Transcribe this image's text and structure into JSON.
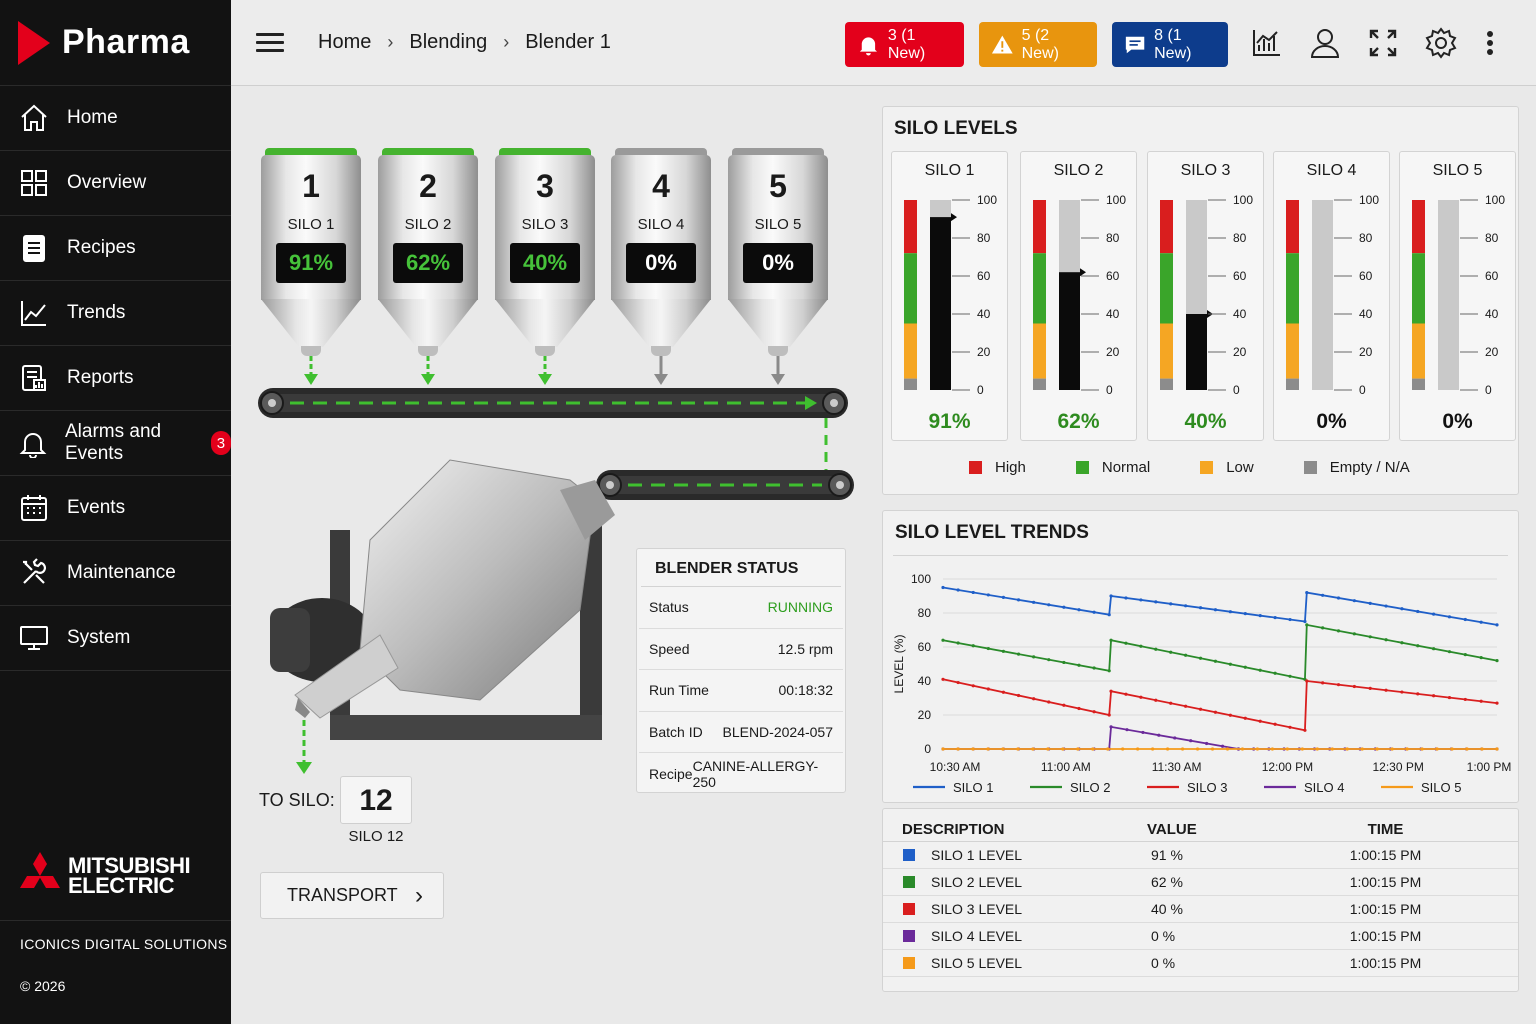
{
  "brand": {
    "name": "Pharma"
  },
  "sidebar": {
    "items": [
      {
        "label": "Home",
        "icon": "home-icon"
      },
      {
        "label": "Overview",
        "icon": "grid-icon"
      },
      {
        "label": "Recipes",
        "icon": "document-icon"
      },
      {
        "label": "Trends",
        "icon": "trend-icon"
      },
      {
        "label": "Reports",
        "icon": "report-icon"
      },
      {
        "label": "Alarms and Events",
        "icon": "bell-icon",
        "badge": "3"
      },
      {
        "label": "Events",
        "icon": "calendar-icon"
      },
      {
        "label": "Maintenance",
        "icon": "tools-icon"
      },
      {
        "label": "System",
        "icon": "monitor-icon"
      }
    ],
    "vendor_line1": "MITSUBISHI",
    "vendor_line2": "ELECTRIC",
    "vendor_sub": "ICONICS DIGITAL SOLUTIONS",
    "copyright": "© 2026"
  },
  "header": {
    "breadcrumb": [
      "Home",
      "Blending",
      "Blender 1"
    ],
    "alarms": {
      "label": "3 (1 New)",
      "color": "#e3001b"
    },
    "warnings": {
      "label": "5 (2 New)",
      "color": "#e8950e"
    },
    "messages": {
      "label": "8 (1 New)",
      "color": "#0d3c8c"
    }
  },
  "process": {
    "silos": [
      {
        "number": "1",
        "name": "SILO 1",
        "level": "91%",
        "active": true
      },
      {
        "number": "2",
        "name": "SILO 2",
        "level": "62%",
        "active": true
      },
      {
        "number": "3",
        "name": "SILO 3",
        "level": "40%",
        "active": true
      },
      {
        "number": "4",
        "name": "SILO 4",
        "level": "0%",
        "active": false
      },
      {
        "number": "5",
        "name": "SILO 5",
        "level": "0%",
        "active": false
      }
    ],
    "to_silo_label": "TO SILO:",
    "to_silo_number": "12",
    "to_silo_name": "SILO 12",
    "transport_label": "TRANSPORT"
  },
  "blender_status": {
    "title": "BLENDER STATUS",
    "rows": [
      {
        "label": "Status",
        "value": "RUNNING"
      },
      {
        "label": "Speed",
        "value": "12.5 rpm"
      },
      {
        "label": "Run Time",
        "value": "00:18:32"
      },
      {
        "label": "Batch ID",
        "value": "BLEND-2024-057"
      },
      {
        "label": "Recipe",
        "value": "CANINE-ALLERGY-250"
      }
    ],
    "running_color": "#2e9e1f"
  },
  "silo_levels": {
    "title": "SILO LEVELS",
    "scale": [
      "100",
      "80",
      "60",
      "40",
      "20",
      "0"
    ],
    "gauges": [
      {
        "name": "SILO 1",
        "value": 91,
        "label": "91%",
        "color": "#2e8b1f"
      },
      {
        "name": "SILO 2",
        "value": 62,
        "label": "62%",
        "color": "#2e8b1f"
      },
      {
        "name": "SILO 3",
        "value": 40,
        "label": "40%",
        "color": "#2e8b1f"
      },
      {
        "name": "SILO 4",
        "value": 0,
        "label": "0%",
        "color": "#111111"
      },
      {
        "name": "SILO 5",
        "value": 0,
        "label": "0%",
        "color": "#111111"
      }
    ],
    "legend": [
      {
        "label": "High",
        "color": "#d91e1e"
      },
      {
        "label": "Normal",
        "color": "#3aa52a"
      },
      {
        "label": "Low",
        "color": "#f5a623"
      },
      {
        "label": "Empty / N/A",
        "color": "#8c8c8c"
      }
    ]
  },
  "chart_data": {
    "type": "line",
    "title": "SILO LEVEL TRENDS",
    "ylabel": "LEVEL (%)",
    "xlabel": "",
    "ylim": [
      0,
      100
    ],
    "yticks": [
      "100",
      "80",
      "60",
      "40",
      "20",
      "0"
    ],
    "xticks": [
      "10:30 AM",
      "11:00 AM",
      "11:30 AM",
      "12:00 PM",
      "12:30 PM",
      "1:00 PM"
    ],
    "grid": true,
    "legend_position": "bottom",
    "series": [
      {
        "name": "SILO 1",
        "color": "#1f5fc8",
        "x": [
          0,
          45,
          45.5,
          98,
          98.5,
          150
        ],
        "y": [
          95,
          79,
          90,
          75,
          92,
          73
        ]
      },
      {
        "name": "SILO 2",
        "color": "#2a8a2a",
        "x": [
          0,
          45,
          45.5,
          98,
          98.5,
          150
        ],
        "y": [
          64,
          46,
          64,
          41,
          73,
          52
        ]
      },
      {
        "name": "SILO 3",
        "color": "#d91e1e",
        "x": [
          0,
          45,
          45.5,
          98,
          98.5,
          150
        ],
        "y": [
          41,
          20,
          34,
          11,
          40,
          27
        ]
      },
      {
        "name": "SILO 4",
        "color": "#6b2a9a",
        "x": [
          0,
          45,
          45.5,
          80,
          150
        ],
        "y": [
          0,
          0,
          13,
          0,
          0
        ]
      },
      {
        "name": "SILO 5",
        "color": "#f59a1a",
        "x": [
          0,
          150
        ],
        "y": [
          0,
          0
        ]
      }
    ]
  },
  "data_table": {
    "headers": [
      "DESCRIPTION",
      "VALUE",
      "TIME"
    ],
    "rows": [
      {
        "description": "SILO 1 LEVEL",
        "value": "91 %",
        "time": "1:00:15 PM",
        "color": "#1f5fc8"
      },
      {
        "description": "SILO 2 LEVEL",
        "value": "62 %",
        "time": "1:00:15 PM",
        "color": "#2a8a2a"
      },
      {
        "description": "SILO 3 LEVEL",
        "value": "40 %",
        "time": "1:00:15 PM",
        "color": "#d91e1e"
      },
      {
        "description": "SILO 4 LEVEL",
        "value": "0 %",
        "time": "1:00:15 PM",
        "color": "#6b2a9a"
      },
      {
        "description": "SILO 5 LEVEL",
        "value": "0 %",
        "time": "1:00:15 PM",
        "color": "#f59a1a"
      }
    ]
  }
}
